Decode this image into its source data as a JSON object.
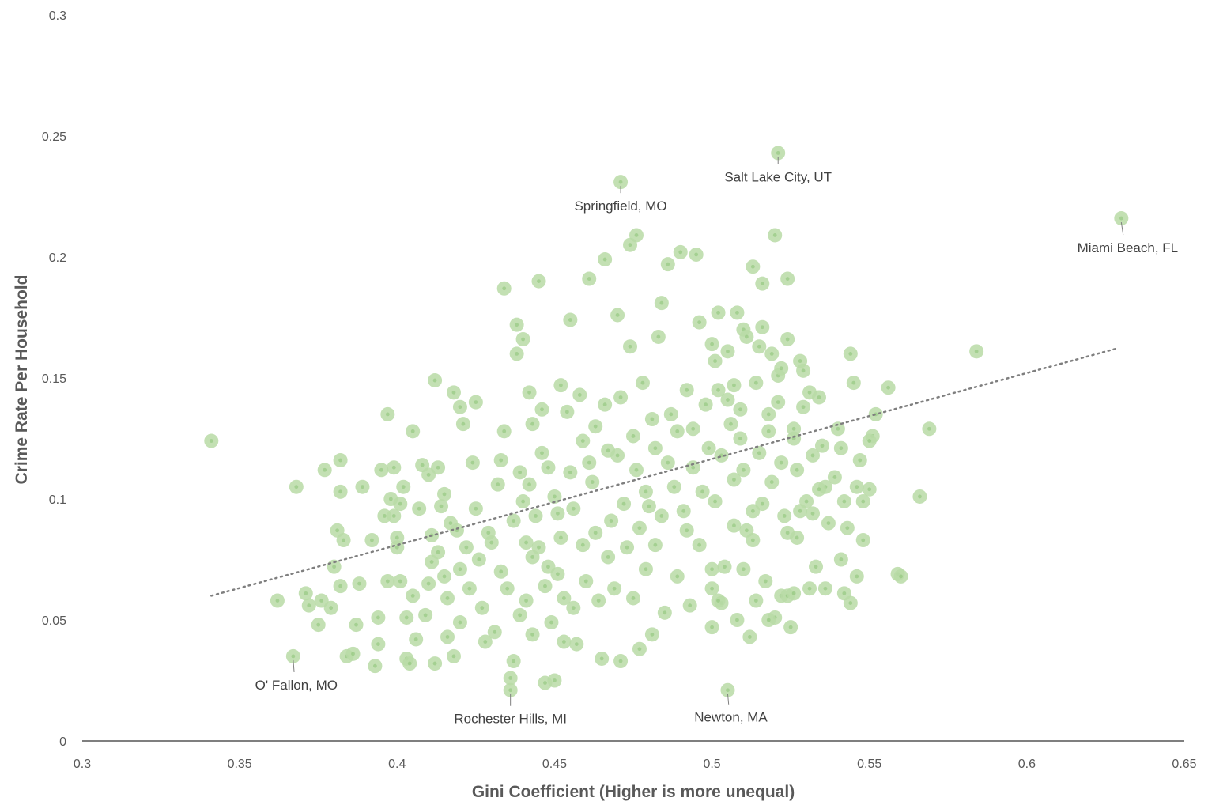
{
  "chart_data": {
    "type": "scatter",
    "title": "",
    "xlabel": "Gini Coefficient (Higher is more unequal)",
    "ylabel": "Crime Rate Per Household",
    "xlim": [
      0.3,
      0.65
    ],
    "ylim": [
      0,
      0.3
    ],
    "x_ticks": [
      "0.3",
      "0.35",
      "0.4",
      "0.45",
      "0.5",
      "0.55",
      "0.6",
      "0.65"
    ],
    "y_ticks": [
      "0",
      "0.05",
      "0.1",
      "0.15",
      "0.2",
      "0.25",
      "0.3"
    ],
    "grid": false,
    "legend": "none",
    "point_color": "#b9dba6",
    "trendline": {
      "style": "dotted",
      "color": "#7f7f7f",
      "from": [
        0.341,
        0.06
      ],
      "to": [
        0.628,
        0.162
      ]
    },
    "annotations": [
      {
        "label": "Salt Lake City, UT",
        "x": 0.521,
        "y": 0.243
      },
      {
        "label": "Springfield, MO",
        "x": 0.471,
        "y": 0.231
      },
      {
        "label": "Miami Beach, FL",
        "x": 0.63,
        "y": 0.216
      },
      {
        "label": "O' Fallon, MO",
        "x": 0.367,
        "y": 0.035
      },
      {
        "label": "Rochester Hills, MI",
        "x": 0.436,
        "y": 0.021
      },
      {
        "label": "Newton, MA",
        "x": 0.505,
        "y": 0.021
      }
    ],
    "points": [
      [
        0.341,
        0.124
      ],
      [
        0.362,
        0.058
      ],
      [
        0.368,
        0.105
      ],
      [
        0.371,
        0.061
      ],
      [
        0.372,
        0.056
      ],
      [
        0.375,
        0.048
      ],
      [
        0.376,
        0.058
      ],
      [
        0.377,
        0.112
      ],
      [
        0.379,
        0.055
      ],
      [
        0.38,
        0.072
      ],
      [
        0.381,
        0.087
      ],
      [
        0.382,
        0.116
      ],
      [
        0.383,
        0.083
      ],
      [
        0.382,
        0.103
      ],
      [
        0.382,
        0.064
      ],
      [
        0.384,
        0.035
      ],
      [
        0.386,
        0.036
      ],
      [
        0.387,
        0.048
      ],
      [
        0.388,
        0.065
      ],
      [
        0.389,
        0.105
      ],
      [
        0.392,
        0.083
      ],
      [
        0.393,
        0.031
      ],
      [
        0.394,
        0.051
      ],
      [
        0.394,
        0.04
      ],
      [
        0.395,
        0.112
      ],
      [
        0.396,
        0.093
      ],
      [
        0.397,
        0.135
      ],
      [
        0.397,
        0.066
      ],
      [
        0.398,
        0.1
      ],
      [
        0.399,
        0.093
      ],
      [
        0.399,
        0.113
      ],
      [
        0.4,
        0.08
      ],
      [
        0.4,
        0.084
      ],
      [
        0.401,
        0.066
      ],
      [
        0.401,
        0.098
      ],
      [
        0.402,
        0.105
      ],
      [
        0.403,
        0.034
      ],
      [
        0.403,
        0.051
      ],
      [
        0.404,
        0.032
      ],
      [
        0.405,
        0.128
      ],
      [
        0.405,
        0.06
      ],
      [
        0.406,
        0.042
      ],
      [
        0.407,
        0.096
      ],
      [
        0.408,
        0.114
      ],
      [
        0.409,
        0.052
      ],
      [
        0.41,
        0.11
      ],
      [
        0.41,
        0.065
      ],
      [
        0.411,
        0.085
      ],
      [
        0.411,
        0.074
      ],
      [
        0.412,
        0.149
      ],
      [
        0.412,
        0.032
      ],
      [
        0.413,
        0.113
      ],
      [
        0.413,
        0.078
      ],
      [
        0.414,
        0.097
      ],
      [
        0.415,
        0.102
      ],
      [
        0.415,
        0.068
      ],
      [
        0.416,
        0.059
      ],
      [
        0.416,
        0.043
      ],
      [
        0.417,
        0.09
      ],
      [
        0.418,
        0.144
      ],
      [
        0.418,
        0.035
      ],
      [
        0.419,
        0.087
      ],
      [
        0.42,
        0.138
      ],
      [
        0.42,
        0.071
      ],
      [
        0.42,
        0.049
      ],
      [
        0.421,
        0.131
      ],
      [
        0.422,
        0.08
      ],
      [
        0.423,
        0.063
      ],
      [
        0.424,
        0.115
      ],
      [
        0.425,
        0.096
      ],
      [
        0.425,
        0.14
      ],
      [
        0.426,
        0.075
      ],
      [
        0.427,
        0.055
      ],
      [
        0.428,
        0.041
      ],
      [
        0.429,
        0.086
      ],
      [
        0.43,
        0.082
      ],
      [
        0.431,
        0.045
      ],
      [
        0.432,
        0.106
      ],
      [
        0.433,
        0.116
      ],
      [
        0.433,
        0.07
      ],
      [
        0.434,
        0.128
      ],
      [
        0.434,
        0.187
      ],
      [
        0.435,
        0.063
      ],
      [
        0.436,
        0.026
      ],
      [
        0.437,
        0.091
      ],
      [
        0.437,
        0.033
      ],
      [
        0.438,
        0.172
      ],
      [
        0.438,
        0.16
      ],
      [
        0.439,
        0.111
      ],
      [
        0.439,
        0.052
      ],
      [
        0.44,
        0.166
      ],
      [
        0.44,
        0.099
      ],
      [
        0.441,
        0.082
      ],
      [
        0.441,
        0.058
      ],
      [
        0.442,
        0.144
      ],
      [
        0.442,
        0.106
      ],
      [
        0.443,
        0.131
      ],
      [
        0.443,
        0.076
      ],
      [
        0.443,
        0.044
      ],
      [
        0.444,
        0.093
      ],
      [
        0.445,
        0.19
      ],
      [
        0.445,
        0.08
      ],
      [
        0.446,
        0.137
      ],
      [
        0.446,
        0.119
      ],
      [
        0.447,
        0.064
      ],
      [
        0.447,
        0.024
      ],
      [
        0.448,
        0.113
      ],
      [
        0.448,
        0.072
      ],
      [
        0.449,
        0.049
      ],
      [
        0.45,
        0.101
      ],
      [
        0.45,
        0.025
      ],
      [
        0.451,
        0.094
      ],
      [
        0.451,
        0.069
      ],
      [
        0.452,
        0.147
      ],
      [
        0.452,
        0.084
      ],
      [
        0.453,
        0.059
      ],
      [
        0.453,
        0.041
      ],
      [
        0.454,
        0.136
      ],
      [
        0.455,
        0.174
      ],
      [
        0.455,
        0.111
      ],
      [
        0.456,
        0.096
      ],
      [
        0.456,
        0.055
      ],
      [
        0.457,
        0.04
      ],
      [
        0.458,
        0.143
      ],
      [
        0.459,
        0.124
      ],
      [
        0.459,
        0.081
      ],
      [
        0.46,
        0.066
      ],
      [
        0.461,
        0.191
      ],
      [
        0.461,
        0.115
      ],
      [
        0.462,
        0.107
      ],
      [
        0.463,
        0.13
      ],
      [
        0.463,
        0.086
      ],
      [
        0.464,
        0.058
      ],
      [
        0.465,
        0.034
      ],
      [
        0.466,
        0.199
      ],
      [
        0.466,
        0.139
      ],
      [
        0.467,
        0.12
      ],
      [
        0.467,
        0.076
      ],
      [
        0.468,
        0.091
      ],
      [
        0.469,
        0.063
      ],
      [
        0.47,
        0.176
      ],
      [
        0.47,
        0.118
      ],
      [
        0.471,
        0.142
      ],
      [
        0.471,
        0.033
      ],
      [
        0.472,
        0.098
      ],
      [
        0.473,
        0.08
      ],
      [
        0.474,
        0.205
      ],
      [
        0.474,
        0.163
      ],
      [
        0.475,
        0.126
      ],
      [
        0.475,
        0.059
      ],
      [
        0.476,
        0.209
      ],
      [
        0.476,
        0.112
      ],
      [
        0.477,
        0.088
      ],
      [
        0.477,
        0.038
      ],
      [
        0.478,
        0.148
      ],
      [
        0.479,
        0.103
      ],
      [
        0.479,
        0.071
      ],
      [
        0.48,
        0.097
      ],
      [
        0.481,
        0.133
      ],
      [
        0.481,
        0.044
      ],
      [
        0.482,
        0.121
      ],
      [
        0.482,
        0.081
      ],
      [
        0.483,
        0.167
      ],
      [
        0.484,
        0.181
      ],
      [
        0.484,
        0.093
      ],
      [
        0.485,
        0.053
      ],
      [
        0.486,
        0.115
      ],
      [
        0.486,
        0.197
      ],
      [
        0.487,
        0.135
      ],
      [
        0.488,
        0.105
      ],
      [
        0.489,
        0.128
      ],
      [
        0.489,
        0.068
      ],
      [
        0.49,
        0.202
      ],
      [
        0.491,
        0.095
      ],
      [
        0.492,
        0.087
      ],
      [
        0.492,
        0.145
      ],
      [
        0.493,
        0.056
      ],
      [
        0.494,
        0.113
      ],
      [
        0.494,
        0.129
      ],
      [
        0.495,
        0.201
      ],
      [
        0.496,
        0.173
      ],
      [
        0.496,
        0.081
      ],
      [
        0.497,
        0.103
      ],
      [
        0.498,
        0.139
      ],
      [
        0.499,
        0.121
      ],
      [
        0.5,
        0.063
      ],
      [
        0.501,
        0.157
      ],
      [
        0.501,
        0.099
      ],
      [
        0.502,
        0.145
      ],
      [
        0.503,
        0.118
      ],
      [
        0.504,
        0.072
      ],
      [
        0.505,
        0.161
      ],
      [
        0.506,
        0.131
      ],
      [
        0.507,
        0.089
      ],
      [
        0.507,
        0.108
      ],
      [
        0.508,
        0.05
      ],
      [
        0.509,
        0.137
      ],
      [
        0.51,
        0.17
      ],
      [
        0.51,
        0.112
      ],
      [
        0.511,
        0.087
      ],
      [
        0.512,
        0.043
      ],
      [
        0.513,
        0.095
      ],
      [
        0.514,
        0.148
      ],
      [
        0.515,
        0.119
      ],
      [
        0.516,
        0.098
      ],
      [
        0.517,
        0.066
      ],
      [
        0.518,
        0.128
      ],
      [
        0.519,
        0.107
      ],
      [
        0.52,
        0.051
      ],
      [
        0.521,
        0.14
      ],
      [
        0.522,
        0.115
      ],
      [
        0.523,
        0.093
      ],
      [
        0.524,
        0.086
      ],
      [
        0.525,
        0.047
      ],
      [
        0.526,
        0.125
      ],
      [
        0.527,
        0.112
      ],
      [
        0.528,
        0.095
      ],
      [
        0.529,
        0.138
      ],
      [
        0.53,
        0.099
      ],
      [
        0.531,
        0.063
      ],
      [
        0.532,
        0.118
      ],
      [
        0.533,
        0.072
      ],
      [
        0.534,
        0.142
      ],
      [
        0.535,
        0.122
      ],
      [
        0.536,
        0.105
      ],
      [
        0.537,
        0.09
      ],
      [
        0.539,
        0.109
      ],
      [
        0.54,
        0.129
      ],
      [
        0.541,
        0.075
      ],
      [
        0.542,
        0.099
      ],
      [
        0.543,
        0.088
      ],
      [
        0.544,
        0.057
      ],
      [
        0.545,
        0.148
      ],
      [
        0.546,
        0.105
      ],
      [
        0.547,
        0.116
      ],
      [
        0.548,
        0.083
      ],
      [
        0.5,
        0.164
      ],
      [
        0.502,
        0.177
      ],
      [
        0.505,
        0.141
      ],
      [
        0.507,
        0.147
      ],
      [
        0.508,
        0.177
      ],
      [
        0.509,
        0.125
      ],
      [
        0.511,
        0.167
      ],
      [
        0.513,
        0.196
      ],
      [
        0.515,
        0.163
      ],
      [
        0.516,
        0.189
      ],
      [
        0.516,
        0.171
      ],
      [
        0.518,
        0.135
      ],
      [
        0.519,
        0.16
      ],
      [
        0.52,
        0.209
      ],
      [
        0.521,
        0.151
      ],
      [
        0.522,
        0.154
      ],
      [
        0.524,
        0.191
      ],
      [
        0.524,
        0.166
      ],
      [
        0.526,
        0.129
      ],
      [
        0.528,
        0.157
      ],
      [
        0.529,
        0.153
      ],
      [
        0.531,
        0.144
      ],
      [
        0.534,
        0.104
      ],
      [
        0.544,
        0.16
      ],
      [
        0.548,
        0.099
      ],
      [
        0.551,
        0.126
      ],
      [
        0.552,
        0.135
      ],
      [
        0.556,
        0.146
      ],
      [
        0.559,
        0.069
      ],
      [
        0.56,
        0.068
      ],
      [
        0.566,
        0.101
      ],
      [
        0.569,
        0.129
      ],
      [
        0.584,
        0.161
      ],
      [
        0.5,
        0.047
      ],
      [
        0.503,
        0.057
      ],
      [
        0.5,
        0.071
      ],
      [
        0.502,
        0.058
      ],
      [
        0.51,
        0.071
      ],
      [
        0.513,
        0.083
      ],
      [
        0.514,
        0.058
      ],
      [
        0.518,
        0.05
      ],
      [
        0.522,
        0.06
      ],
      [
        0.524,
        0.06
      ],
      [
        0.526,
        0.061
      ],
      [
        0.527,
        0.084
      ],
      [
        0.532,
        0.094
      ],
      [
        0.542,
        0.061
      ],
      [
        0.546,
        0.068
      ],
      [
        0.541,
        0.121
      ],
      [
        0.55,
        0.104
      ],
      [
        0.55,
        0.124
      ],
      [
        0.536,
        0.063
      ]
    ]
  }
}
